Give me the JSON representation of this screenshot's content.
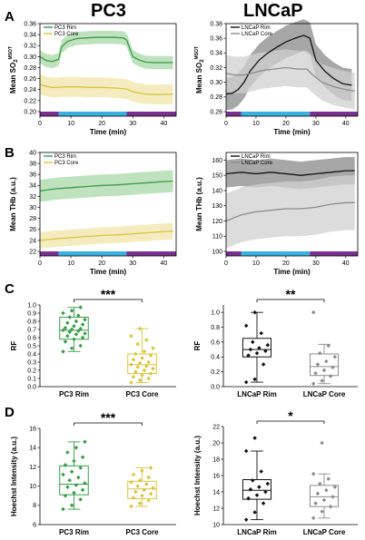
{
  "figure": {
    "title_left": "PC3",
    "title_right": "LNCaP",
    "panel_labels": [
      "A",
      "B",
      "C",
      "D"
    ]
  },
  "colors": {
    "pc3_rim": "#3a9a4a",
    "pc3_rim_band": "#a8d8a8",
    "pc3_core": "#d8c440",
    "pc3_core_band": "#f0e6a8",
    "ln_rim": "#111111",
    "ln_rim_band": "#8a8a8a",
    "ln_core": "#8c8c8c",
    "ln_core_band": "#d0d0d0",
    "bar_purple": "#7a2e8e",
    "bar_cyan": "#3ab0e0"
  },
  "chart_data": [
    {
      "id": "A-PC3",
      "type": "line",
      "xlabel": "Time (min)",
      "ylabel": "Mean SO2 MSOT",
      "xlim": [
        0,
        44
      ],
      "ylim": [
        0.2,
        0.36
      ],
      "xticks": [
        0,
        10,
        20,
        30,
        40
      ],
      "yticks": [
        0.2,
        0.22,
        0.24,
        0.26,
        0.28,
        0.3,
        0.32,
        0.34,
        0.36
      ],
      "phases": [
        {
          "start": 0,
          "end": 6,
          "color": "purple"
        },
        {
          "start": 6,
          "end": 28,
          "color": "cyan"
        },
        {
          "start": 28,
          "end": 44,
          "color": "purple"
        }
      ],
      "series": [
        {
          "name": "PC3 Rim",
          "color_key": "pc3_rim",
          "band_key": "pc3_rim_band",
          "band": 0.012,
          "x": [
            0,
            2,
            4,
            6,
            7,
            9,
            12,
            15,
            18,
            21,
            24,
            27,
            28,
            30,
            32,
            34,
            37,
            40,
            43
          ],
          "y": [
            0.3,
            0.293,
            0.291,
            0.295,
            0.318,
            0.328,
            0.333,
            0.334,
            0.335,
            0.335,
            0.335,
            0.334,
            0.33,
            0.3,
            0.294,
            0.29,
            0.289,
            0.289,
            0.289
          ]
        },
        {
          "name": "PC3 Core",
          "color_key": "pc3_core",
          "band_key": "pc3_core_band",
          "band": 0.018,
          "x": [
            0,
            2,
            4,
            6,
            8,
            12,
            16,
            20,
            24,
            28,
            30,
            34,
            38,
            43
          ],
          "y": [
            0.25,
            0.246,
            0.244,
            0.244,
            0.245,
            0.245,
            0.244,
            0.244,
            0.243,
            0.241,
            0.236,
            0.232,
            0.231,
            0.232
          ]
        }
      ]
    },
    {
      "id": "A-LNCaP",
      "type": "line",
      "xlabel": "Time (min)",
      "ylabel": "Mean SO2 MSOT",
      "xlim": [
        0,
        44
      ],
      "ylim": [
        0.26,
        0.38
      ],
      "xticks": [
        0,
        10,
        20,
        30,
        40
      ],
      "yticks": [
        0.26,
        0.28,
        0.3,
        0.32,
        0.34,
        0.36,
        0.38
      ],
      "phases": [
        {
          "start": 0,
          "end": 5,
          "color": "purple"
        },
        {
          "start": 5,
          "end": 28,
          "color": "cyan"
        },
        {
          "start": 28,
          "end": 44,
          "color": "purple"
        }
      ],
      "series": [
        {
          "name": "LNCaP Rim",
          "color_key": "ln_rim",
          "band_key": "ln_rim_band",
          "band": 0.022,
          "x": [
            0,
            2,
            4,
            6,
            8,
            11,
            14,
            17,
            20,
            23,
            26,
            28,
            30,
            33,
            36,
            39,
            42
          ],
          "y": [
            0.284,
            0.285,
            0.29,
            0.3,
            0.315,
            0.33,
            0.34,
            0.348,
            0.355,
            0.36,
            0.364,
            0.36,
            0.33,
            0.315,
            0.305,
            0.298,
            0.296
          ]
        },
        {
          "name": "LNCaP Core",
          "color_key": "ln_core",
          "band_key": "ln_core_band",
          "band": 0.025,
          "x": [
            0,
            3,
            6,
            9,
            12,
            16,
            20,
            24,
            27,
            29,
            32,
            36,
            40,
            43
          ],
          "y": [
            0.312,
            0.31,
            0.31,
            0.313,
            0.316,
            0.318,
            0.32,
            0.318,
            0.318,
            0.31,
            0.3,
            0.294,
            0.29,
            0.288
          ]
        }
      ]
    },
    {
      "id": "B-PC3",
      "type": "line",
      "xlabel": "Time (min)",
      "ylabel": "Mean THb (a.u.)",
      "xlim": [
        0,
        44
      ],
      "ylim": [
        22,
        40
      ],
      "xticks": [
        0,
        10,
        20,
        30,
        40
      ],
      "yticks": [
        22,
        24,
        26,
        28,
        30,
        32,
        34,
        36,
        38,
        40
      ],
      "phases": [
        {
          "start": 0,
          "end": 6,
          "color": "purple"
        },
        {
          "start": 6,
          "end": 28,
          "color": "cyan"
        },
        {
          "start": 28,
          "end": 44,
          "color": "purple"
        }
      ],
      "series": [
        {
          "name": "PC3 Rim",
          "color_key": "pc3_rim",
          "band_key": "pc3_rim_band",
          "band": 2.0,
          "x": [
            0,
            5,
            10,
            15,
            20,
            25,
            30,
            35,
            40,
            43
          ],
          "y": [
            33.0,
            33.4,
            33.6,
            33.8,
            34.0,
            34.1,
            34.3,
            34.5,
            34.7,
            34.8
          ]
        },
        {
          "name": "PC3 Core",
          "color_key": "pc3_core",
          "band_key": "pc3_core_band",
          "band": 1.5,
          "x": [
            0,
            5,
            10,
            15,
            20,
            25,
            30,
            35,
            40,
            43
          ],
          "y": [
            24.0,
            24.3,
            24.5,
            24.7,
            24.9,
            25.0,
            25.2,
            25.4,
            25.6,
            25.7
          ]
        }
      ]
    },
    {
      "id": "B-LNCaP",
      "type": "line",
      "xlabel": "Time (min)",
      "ylabel": "Mean THb (a.u.)",
      "xlim": [
        0,
        44
      ],
      "ylim": [
        100,
        165
      ],
      "xticks": [
        0,
        10,
        20,
        30,
        40
      ],
      "yticks": [
        100,
        110,
        120,
        130,
        140,
        150,
        160
      ],
      "phases": [
        {
          "start": 0,
          "end": 5,
          "color": "purple"
        },
        {
          "start": 5,
          "end": 28,
          "color": "cyan"
        },
        {
          "start": 28,
          "end": 44,
          "color": "purple"
        }
      ],
      "series": [
        {
          "name": "LNCaP Rim",
          "color_key": "ln_rim",
          "band_key": "ln_rim_band",
          "band": 9.0,
          "x": [
            0,
            5,
            10,
            15,
            20,
            25,
            30,
            35,
            40,
            43
          ],
          "y": [
            151,
            152,
            151,
            152,
            151,
            150,
            151,
            152,
            153,
            153
          ]
        },
        {
          "name": "LNCaP Core",
          "color_key": "ln_core",
          "band_key": "ln_core_band",
          "band": 18.0,
          "x": [
            0,
            5,
            10,
            15,
            20,
            25,
            30,
            35,
            40,
            43
          ],
          "y": [
            120,
            124,
            126,
            127,
            128,
            128,
            129,
            131,
            132,
            132
          ]
        }
      ]
    },
    {
      "id": "C-PC3",
      "type": "box",
      "ylabel": "RF",
      "ylim": [
        0,
        1
      ],
      "yticks": [
        0,
        0.1,
        0.2,
        0.3,
        0.4,
        0.5,
        0.6,
        0.7,
        0.8,
        0.9,
        1.0
      ],
      "significance": "***",
      "boxes": [
        {
          "name": "PC3 Rim",
          "color_key": "pc3_rim",
          "min": 0.43,
          "q1": 0.58,
          "median": 0.69,
          "q3": 0.85,
          "max": 0.97,
          "points": [
            0.43,
            0.47,
            0.5,
            0.55,
            0.58,
            0.6,
            0.62,
            0.64,
            0.65,
            0.67,
            0.68,
            0.69,
            0.7,
            0.71,
            0.72,
            0.74,
            0.76,
            0.78,
            0.8,
            0.82,
            0.85,
            0.87,
            0.9,
            0.93,
            0.97
          ]
        },
        {
          "name": "PC3 Core",
          "color_key": "pc3_core",
          "min": 0.05,
          "q1": 0.16,
          "median": 0.27,
          "q3": 0.4,
          "max": 0.71,
          "points": [
            0.05,
            0.08,
            0.1,
            0.12,
            0.14,
            0.16,
            0.18,
            0.2,
            0.22,
            0.24,
            0.25,
            0.27,
            0.29,
            0.3,
            0.33,
            0.35,
            0.38,
            0.4,
            0.43,
            0.47,
            0.52,
            0.57,
            0.62,
            0.71
          ]
        }
      ]
    },
    {
      "id": "C-LNCaP",
      "type": "box",
      "ylabel": "RF",
      "ylim": [
        0,
        1.1
      ],
      "yticks": [
        0,
        0.2,
        0.4,
        0.6,
        0.8,
        1.0
      ],
      "significance": "**",
      "boxes": [
        {
          "name": "LNCaP Rim",
          "color_key": "ln_rim",
          "min": 0.06,
          "q1": 0.4,
          "median": 0.5,
          "q3": 0.65,
          "max": 1.0,
          "points": [
            0.06,
            0.1,
            0.3,
            0.42,
            0.45,
            0.48,
            0.5,
            0.52,
            0.56,
            0.6,
            0.72,
            0.82,
            1.0
          ]
        },
        {
          "name": "LNCaP Core",
          "color_key": "ln_core",
          "min": 0.04,
          "q1": 0.15,
          "median": 0.27,
          "q3": 0.44,
          "max": 0.57,
          "points": [
            0.04,
            0.08,
            0.14,
            0.18,
            0.22,
            0.26,
            0.3,
            0.34,
            0.4,
            0.45,
            0.55,
            1.0
          ]
        }
      ]
    },
    {
      "id": "D-PC3",
      "type": "box",
      "ylabel": "Hoechst Intensity (a.u.)",
      "ylim": [
        6,
        16
      ],
      "yticks": [
        6,
        8,
        10,
        12,
        14,
        16
      ],
      "significance": "***",
      "boxes": [
        {
          "name": "PC3 Rim",
          "color_key": "pc3_rim",
          "min": 7.6,
          "q1": 9.1,
          "median": 10.2,
          "q3": 12.1,
          "max": 14.6,
          "points": [
            7.6,
            8.0,
            8.6,
            9.0,
            9.3,
            9.6,
            9.9,
            10.1,
            10.3,
            10.6,
            10.9,
            11.2,
            11.5,
            11.9,
            12.2,
            12.6,
            13.0,
            13.5,
            14.0,
            14.6
          ]
        },
        {
          "name": "PC3 Core",
          "color_key": "pc3_core",
          "min": 7.9,
          "q1": 8.7,
          "median": 9.7,
          "q3": 10.5,
          "max": 11.9,
          "points": [
            7.9,
            8.2,
            8.5,
            8.8,
            9.0,
            9.2,
            9.4,
            9.6,
            9.8,
            10.0,
            10.2,
            10.4,
            10.6,
            10.9,
            11.2,
            11.6,
            11.9
          ]
        }
      ]
    },
    {
      "id": "D-LNCaP",
      "type": "box",
      "ylabel": "Hoechst Intensity (a.u.)",
      "ylim": [
        10,
        22
      ],
      "yticks": [
        10,
        12,
        14,
        16,
        18,
        20,
        22
      ],
      "significance": "*",
      "boxes": [
        {
          "name": "LNCaP Rim",
          "color_key": "ln_rim",
          "min": 10.6,
          "q1": 13.1,
          "median": 14.2,
          "q3": 15.5,
          "max": 19.0,
          "points": [
            10.6,
            11.5,
            12.6,
            13.2,
            13.6,
            14.0,
            14.3,
            14.6,
            15.0,
            15.4,
            16.5,
            19.0,
            20.6
          ]
        },
        {
          "name": "LNCaP Core",
          "color_key": "ln_core",
          "min": 10.8,
          "q1": 12.2,
          "median": 13.4,
          "q3": 14.8,
          "max": 16.2,
          "points": [
            10.8,
            11.6,
            12.2,
            12.6,
            13.0,
            13.4,
            13.8,
            14.2,
            14.6,
            15.0,
            15.6,
            16.2,
            20.0
          ]
        }
      ]
    }
  ]
}
